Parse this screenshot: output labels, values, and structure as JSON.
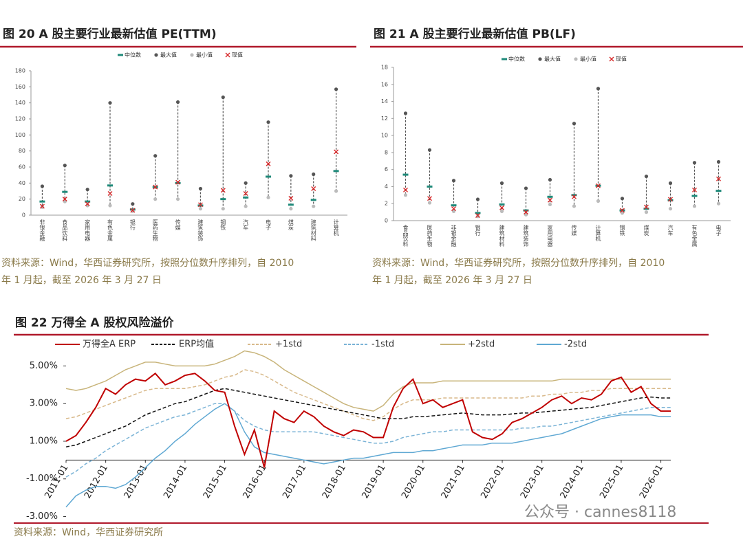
{
  "chart_data": [
    {
      "type": "range",
      "title": "图 20 A 股主要行业最新估值 PE(TTM)",
      "categories": [
        "非银金融",
        "食品饮料",
        "家用电器",
        "有色金属",
        "银行",
        "医药生物",
        "传媒",
        "建筑装饰",
        "钢铁",
        "汽车",
        "电子",
        "煤炭",
        "建筑材料",
        "计算机"
      ],
      "series": [
        {
          "name": "中位数",
          "color": "#1f8a7a",
          "marker": "dash",
          "values": [
            17,
            29,
            17,
            37,
            7,
            35,
            40,
            12,
            20,
            22,
            48,
            13,
            19,
            55
          ]
        },
        {
          "name": "最大值",
          "color": "#555555",
          "marker": "dot",
          "values": [
            36,
            62,
            32,
            140,
            14,
            74,
            141,
            33,
            147,
            40,
            116,
            49,
            51,
            157
          ]
        },
        {
          "name": "最小值",
          "color": "#bbbbbb",
          "marker": "dot",
          "values": [
            10,
            17,
            12,
            12,
            5,
            20,
            20,
            8,
            8,
            11,
            22,
            8,
            11,
            30
          ]
        },
        {
          "name": "现值",
          "color": "#d62728",
          "marker": "x",
          "values": [
            11,
            20,
            14,
            27,
            6,
            35,
            41,
            13,
            31,
            27,
            64,
            21,
            33,
            79
          ]
        }
      ],
      "ylim": [
        0,
        180
      ],
      "yticks": [
        0,
        20,
        40,
        60,
        80,
        100,
        120,
        140,
        160,
        180
      ],
      "source": [
        "资料来源：Wind，华西证券研究所，按照分位数升序排列，自 2010",
        "年 1 月起，截至 2026 年 3 月 27 日"
      ]
    },
    {
      "type": "range",
      "title": "图 21 A 股主要行业最新估值 PB(LF)",
      "categories": [
        "食品饮料",
        "医药生物",
        "非银金融",
        "银行",
        "建筑材料",
        "建筑装饰",
        "家用电器",
        "传媒",
        "计算机",
        "钢铁",
        "煤炭",
        "汽车",
        "有色金属",
        "电子"
      ],
      "series": [
        {
          "name": "中位数",
          "color": "#1f8a7a",
          "marker": "dash",
          "values": [
            5.4,
            4.0,
            1.8,
            0.9,
            1.9,
            1.2,
            2.8,
            3.0,
            4.1,
            1.2,
            1.4,
            2.4,
            2.9,
            3.5
          ]
        },
        {
          "name": "最大值",
          "color": "#555555",
          "marker": "dot",
          "values": [
            12.6,
            8.3,
            4.7,
            2.5,
            4.4,
            3.8,
            4.8,
            11.4,
            15.5,
            2.6,
            5.2,
            4.4,
            6.8,
            6.9
          ]
        },
        {
          "name": "最小值",
          "color": "#bbbbbb",
          "marker": "dot",
          "values": [
            3.0,
            2.1,
            1.1,
            0.5,
            1.1,
            0.7,
            1.9,
            1.7,
            2.3,
            0.9,
            1.0,
            1.4,
            1.7,
            2.0
          ]
        },
        {
          "name": "现值",
          "color": "#d62728",
          "marker": "x",
          "values": [
            3.6,
            2.6,
            1.4,
            0.6,
            1.5,
            1.0,
            2.4,
            2.8,
            4.1,
            1.2,
            1.6,
            2.5,
            3.6,
            4.9
          ]
        }
      ],
      "ylim": [
        0,
        18
      ],
      "yticks": [
        0,
        2,
        4,
        6,
        8,
        10,
        12,
        14,
        16,
        18
      ],
      "source": [
        "资料来源：Wind，华西证券研究所，按照分位数升序排列，自 2010",
        "年 1 月起，截至 2026 年 3 月 27 日"
      ]
    },
    {
      "type": "line",
      "title": "图 22 万得全 A 股权风险溢价",
      "x": [
        "2011-01",
        null,
        null,
        null,
        "2012-01",
        null,
        null,
        null,
        "2013-01",
        null,
        null,
        null,
        "2014-01",
        null,
        null,
        null,
        "2015-01",
        null,
        null,
        null,
        "2016-01",
        null,
        null,
        null,
        "2017-01",
        null,
        null,
        null,
        "2018-01",
        null,
        null,
        null,
        "2019-01",
        null,
        null,
        null,
        "2020-01",
        null,
        null,
        null,
        "2021-01",
        null,
        null,
        null,
        "2022-01",
        null,
        null,
        null,
        "2023-01",
        null,
        null,
        null,
        "2024-01",
        null,
        null,
        null,
        "2025-01",
        null,
        null,
        null,
        "2026-01",
        null
      ],
      "series": [
        {
          "name": "+2std",
          "color": "#c8b47a",
          "dashed": false,
          "values": [
            3.8,
            3.7,
            3.8,
            4.0,
            4.2,
            4.5,
            4.8,
            5.0,
            5.2,
            5.2,
            5.1,
            5.0,
            5.0,
            5.0,
            5.0,
            5.1,
            5.3,
            5.5,
            5.8,
            5.7,
            5.5,
            5.2,
            4.8,
            4.5,
            4.2,
            3.9,
            3.6,
            3.3,
            3.0,
            2.8,
            2.7,
            2.6,
            2.9,
            3.5,
            3.9,
            4.1,
            4.1,
            4.1,
            4.2,
            4.2,
            4.2,
            4.2,
            4.2,
            4.2,
            4.2,
            4.2,
            4.2,
            4.2,
            4.2,
            4.2,
            4.3,
            4.3,
            4.3,
            4.3,
            4.3,
            4.3,
            4.3,
            4.3,
            4.3,
            4.3,
            4.3,
            4.3
          ]
        },
        {
          "name": "-2std",
          "color": "#5fa8d3",
          "dashed": false,
          "values": [
            -2.5,
            -1.9,
            -1.6,
            -1.4,
            -1.4,
            -1.5,
            -1.3,
            -0.9,
            -0.4,
            0.1,
            0.5,
            1.0,
            1.4,
            1.9,
            2.3,
            2.7,
            3.0,
            2.6,
            1.5,
            0.7,
            0.4,
            0.3,
            0.2,
            0.1,
            0.0,
            -0.1,
            -0.2,
            -0.1,
            0.0,
            0.1,
            0.1,
            0.2,
            0.3,
            0.4,
            0.4,
            0.4,
            0.5,
            0.5,
            0.6,
            0.7,
            0.8,
            0.8,
            0.8,
            0.9,
            0.9,
            0.9,
            1.0,
            1.1,
            1.2,
            1.3,
            1.4,
            1.6,
            1.8,
            2.0,
            2.2,
            2.3,
            2.4,
            2.4,
            2.4,
            2.4,
            2.3,
            2.3
          ]
        },
        {
          "name": "+1std",
          "color": "#d8b98a",
          "dashed": true,
          "values": [
            2.2,
            2.3,
            2.5,
            2.7,
            2.9,
            3.1,
            3.3,
            3.5,
            3.7,
            3.8,
            3.8,
            3.8,
            3.8,
            3.9,
            4.0,
            4.2,
            4.4,
            4.5,
            4.8,
            4.7,
            4.5,
            4.2,
            3.9,
            3.6,
            3.4,
            3.2,
            3.0,
            2.8,
            2.6,
            2.4,
            2.2,
            2.1,
            2.3,
            2.7,
            3.0,
            3.2,
            3.2,
            3.2,
            3.3,
            3.3,
            3.3,
            3.3,
            3.3,
            3.3,
            3.3,
            3.3,
            3.3,
            3.4,
            3.4,
            3.5,
            3.5,
            3.6,
            3.6,
            3.7,
            3.7,
            3.8,
            3.8,
            3.8,
            3.8,
            3.8,
            3.8,
            3.8
          ]
        },
        {
          "name": "-1std",
          "color": "#7ab3d6",
          "dashed": true,
          "values": [
            -0.9,
            -0.6,
            -0.2,
            0.1,
            0.5,
            0.8,
            1.1,
            1.4,
            1.7,
            1.9,
            2.1,
            2.3,
            2.4,
            2.6,
            2.8,
            3.0,
            3.0,
            2.6,
            2.1,
            1.8,
            1.6,
            1.5,
            1.5,
            1.5,
            1.5,
            1.5,
            1.4,
            1.3,
            1.2,
            1.1,
            1.0,
            0.9,
            0.9,
            1.0,
            1.2,
            1.3,
            1.4,
            1.5,
            1.5,
            1.6,
            1.6,
            1.6,
            1.6,
            1.6,
            1.6,
            1.6,
            1.7,
            1.7,
            1.8,
            1.8,
            1.9,
            2.0,
            2.1,
            2.2,
            2.3,
            2.4,
            2.5,
            2.6,
            2.7,
            2.8,
            2.8,
            2.8
          ]
        },
        {
          "name": "ERP均值",
          "color": "#111111",
          "dashed": true,
          "values": [
            0.7,
            0.8,
            1.0,
            1.2,
            1.4,
            1.6,
            1.8,
            2.1,
            2.4,
            2.6,
            2.8,
            3.0,
            3.1,
            3.3,
            3.5,
            3.7,
            3.8,
            3.7,
            3.6,
            3.5,
            3.4,
            3.3,
            3.2,
            3.1,
            3.0,
            2.9,
            2.8,
            2.7,
            2.6,
            2.5,
            2.4,
            2.3,
            2.2,
            2.2,
            2.2,
            2.3,
            2.3,
            2.35,
            2.4,
            2.45,
            2.5,
            2.45,
            2.4,
            2.4,
            2.4,
            2.45,
            2.5,
            2.5,
            2.55,
            2.6,
            2.65,
            2.7,
            2.75,
            2.8,
            2.9,
            3.0,
            3.1,
            3.2,
            3.3,
            3.35,
            3.3,
            3.3
          ]
        },
        {
          "name": "万得全A ERP",
          "color": "#c00000",
          "dashed": false,
          "values": [
            1.0,
            1.3,
            2.0,
            2.8,
            3.8,
            3.5,
            4.0,
            4.3,
            4.2,
            4.6,
            4.0,
            4.2,
            4.5,
            4.6,
            4.2,
            3.7,
            3.6,
            1.8,
            0.3,
            1.6,
            -0.4,
            2.6,
            2.2,
            2.0,
            2.6,
            2.3,
            1.8,
            1.5,
            1.3,
            1.6,
            1.5,
            1.2,
            1.2,
            2.8,
            3.8,
            4.3,
            3.0,
            3.2,
            2.8,
            3.0,
            3.2,
            1.5,
            1.2,
            1.1,
            1.4,
            2.0,
            2.2,
            2.5,
            2.8,
            3.2,
            3.4,
            3.0,
            3.3,
            3.2,
            3.5,
            4.2,
            4.4,
            3.6,
            3.9,
            3.0,
            2.6,
            2.6
          ]
        }
      ],
      "legend_order": [
        "万得全A ERP",
        "ERP均值",
        "+1std",
        "-1std",
        "+2std",
        "-2std"
      ],
      "ylim": [
        -3.2,
        6
      ],
      "yticks": [
        {
          "value": -3,
          "label": "-3.00%"
        },
        {
          "value": -1,
          "label": "-1.00%"
        },
        {
          "value": 1,
          "label": "1.00%"
        },
        {
          "value": 3,
          "label": "3.00%"
        },
        {
          "value": 5,
          "label": "5.00%"
        }
      ],
      "source": [
        "资料来源：Wind，华西证券研究所"
      ]
    }
  ],
  "watermark": "公众号 · cannes8118"
}
